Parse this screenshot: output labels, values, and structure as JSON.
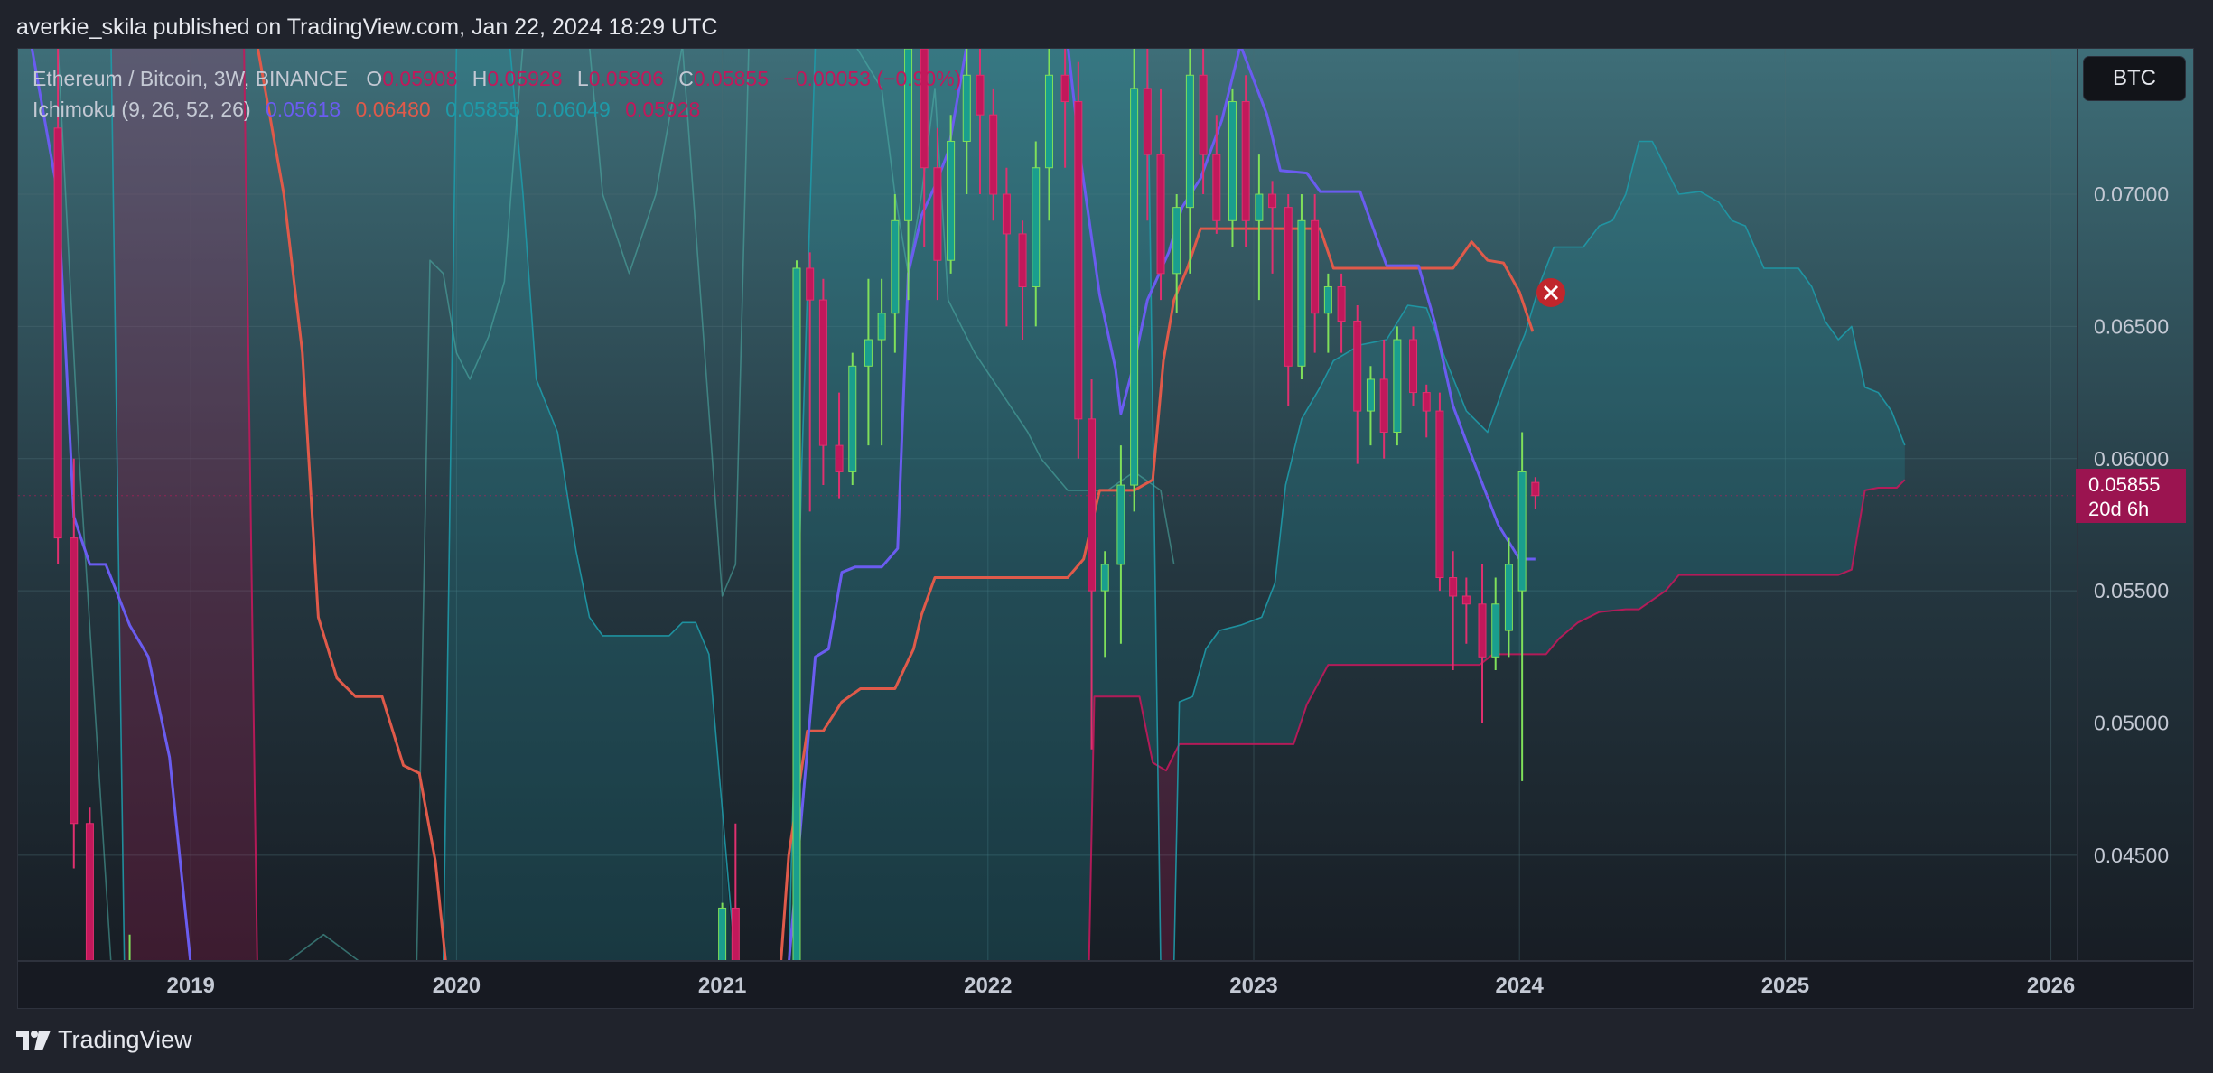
{
  "header": {
    "published_text": "averkie_skila published on TradingView.com, Jan 22, 2024 18:29 UTC"
  },
  "legend": {
    "symbol": "Ethereum / Bitcoin, 3W, BINANCE",
    "o_label": "O",
    "o_value": "0.05908",
    "h_label": "H",
    "h_value": "0.05928",
    "l_label": "L",
    "l_value": "0.05806",
    "c_label": "C",
    "c_value": "0.05855",
    "change": "−0.00053 (−0.90%)",
    "indicator": "Ichimoku (9, 26, 52, 26)",
    "ind_values": [
      "0.05618",
      "0.06480",
      "0.05855",
      "0.06049",
      "0.05928"
    ]
  },
  "currency_button": "BTC",
  "price_tag": {
    "price": "0.05855",
    "countdown": "20d 6h"
  },
  "footer": {
    "brand": "TradingView"
  },
  "colors": {
    "background": "#171a22",
    "up": "#1a9e8e",
    "down": "#c2185b",
    "tenkan": "#6a5cf0",
    "kijun": "#e05a4a",
    "lagging": "#4fb3a9",
    "span_a": "#1e9aa8",
    "span_b": "#c2185b",
    "grid": "#2c3a40"
  },
  "chart_data": {
    "type": "candlestick",
    "title": "Ethereum / Bitcoin, 3W, BINANCE",
    "ylim": [
      0.041,
      0.0755
    ],
    "y_ticks": [
      0.045,
      0.05,
      0.055,
      0.06,
      0.065,
      0.07
    ],
    "y_tick_labels": [
      "0.04500",
      "0.05000",
      "0.05500",
      "0.06000",
      "0.06500",
      "0.07000"
    ],
    "x_range": [
      2018.35,
      2026.1
    ],
    "x_ticks": [
      2019,
      2020,
      2021,
      2022,
      2023,
      2024,
      2025,
      2026
    ],
    "x_tick_labels": [
      "2019",
      "2020",
      "2021",
      "2022",
      "2023",
      "2024",
      "2025",
      "2026"
    ],
    "candles": [
      [
        2018.5,
        0.0725,
        0.076,
        0.056,
        0.057
      ],
      [
        2018.56,
        0.057,
        0.06,
        0.0445,
        0.0462
      ],
      [
        2018.62,
        0.0462,
        0.0468,
        0.04,
        0.0405
      ],
      [
        2018.77,
        0.036,
        0.042,
        0.035,
        0.041
      ],
      [
        2021.0,
        0.0405,
        0.0432,
        0.039,
        0.043
      ],
      [
        2021.05,
        0.043,
        0.0462,
        0.0395,
        0.04
      ],
      [
        2021.28,
        0.041,
        0.0675,
        0.04,
        0.0672
      ],
      [
        2021.33,
        0.0672,
        0.0678,
        0.058,
        0.066
      ],
      [
        2021.38,
        0.066,
        0.0668,
        0.059,
        0.0605
      ],
      [
        2021.44,
        0.0605,
        0.0625,
        0.0585,
        0.0595
      ],
      [
        2021.49,
        0.0595,
        0.064,
        0.059,
        0.0635
      ],
      [
        2021.55,
        0.0635,
        0.0668,
        0.0605,
        0.0645
      ],
      [
        2021.6,
        0.0645,
        0.0668,
        0.0605,
        0.0655
      ],
      [
        2021.65,
        0.0655,
        0.07,
        0.064,
        0.069
      ],
      [
        2021.7,
        0.069,
        0.076,
        0.066,
        0.0755
      ],
      [
        2021.76,
        0.0755,
        0.076,
        0.068,
        0.071
      ],
      [
        2021.81,
        0.071,
        0.0725,
        0.066,
        0.0675
      ],
      [
        2021.86,
        0.0675,
        0.073,
        0.067,
        0.072
      ],
      [
        2021.92,
        0.072,
        0.076,
        0.07,
        0.0745
      ],
      [
        2021.97,
        0.0745,
        0.076,
        0.07,
        0.073
      ],
      [
        2022.02,
        0.073,
        0.074,
        0.069,
        0.07
      ],
      [
        2022.07,
        0.07,
        0.071,
        0.065,
        0.0685
      ],
      [
        2022.13,
        0.0685,
        0.069,
        0.0645,
        0.0665
      ],
      [
        2022.18,
        0.0665,
        0.072,
        0.065,
        0.071
      ],
      [
        2022.23,
        0.071,
        0.0755,
        0.069,
        0.0745
      ],
      [
        2022.29,
        0.0745,
        0.076,
        0.071,
        0.0735
      ],
      [
        2022.34,
        0.0735,
        0.075,
        0.06,
        0.0615
      ],
      [
        2022.39,
        0.0615,
        0.063,
        0.049,
        0.055
      ],
      [
        2022.44,
        0.055,
        0.0565,
        0.0525,
        0.056
      ],
      [
        2022.5,
        0.056,
        0.0605,
        0.053,
        0.059
      ],
      [
        2022.55,
        0.059,
        0.076,
        0.058,
        0.074
      ],
      [
        2022.6,
        0.074,
        0.076,
        0.069,
        0.0715
      ],
      [
        2022.65,
        0.0715,
        0.074,
        0.066,
        0.067
      ],
      [
        2022.71,
        0.067,
        0.07,
        0.0655,
        0.0695
      ],
      [
        2022.76,
        0.0695,
        0.076,
        0.067,
        0.0745
      ],
      [
        2022.81,
        0.0745,
        0.0755,
        0.07,
        0.0715
      ],
      [
        2022.86,
        0.0715,
        0.073,
        0.0685,
        0.069
      ],
      [
        2022.92,
        0.069,
        0.074,
        0.068,
        0.0735
      ],
      [
        2022.97,
        0.0735,
        0.0745,
        0.068,
        0.069
      ],
      [
        2023.02,
        0.069,
        0.0715,
        0.066,
        0.07
      ],
      [
        2023.07,
        0.07,
        0.0705,
        0.067,
        0.0695
      ],
      [
        2023.13,
        0.0695,
        0.07,
        0.062,
        0.0635
      ],
      [
        2023.18,
        0.0635,
        0.07,
        0.063,
        0.069
      ],
      [
        2023.23,
        0.069,
        0.07,
        0.064,
        0.0655
      ],
      [
        2023.28,
        0.0655,
        0.067,
        0.064,
        0.0665
      ],
      [
        2023.33,
        0.0665,
        0.067,
        0.064,
        0.0652
      ],
      [
        2023.39,
        0.0652,
        0.0658,
        0.0598,
        0.0618
      ],
      [
        2023.44,
        0.0618,
        0.0635,
        0.0605,
        0.063
      ],
      [
        2023.49,
        0.063,
        0.0645,
        0.06,
        0.061
      ],
      [
        2023.54,
        0.061,
        0.065,
        0.0605,
        0.0645
      ],
      [
        2023.6,
        0.0645,
        0.065,
        0.062,
        0.0625
      ],
      [
        2023.65,
        0.0625,
        0.0628,
        0.0608,
        0.0618
      ],
      [
        2023.7,
        0.0618,
        0.0625,
        0.055,
        0.0555
      ],
      [
        2023.75,
        0.0555,
        0.0565,
        0.052,
        0.0548
      ],
      [
        2023.8,
        0.0548,
        0.0555,
        0.053,
        0.0545
      ],
      [
        2023.86,
        0.0545,
        0.056,
        0.05,
        0.0525
      ],
      [
        2023.91,
        0.0525,
        0.0555,
        0.052,
        0.0545
      ],
      [
        2023.96,
        0.0535,
        0.057,
        0.0525,
        0.056
      ],
      [
        2024.01,
        0.055,
        0.061,
        0.0478,
        0.0595
      ],
      [
        2024.06,
        0.0591,
        0.0593,
        0.0581,
        0.0586
      ]
    ],
    "tenkan": [
      [
        2018.4,
        0.076
      ],
      [
        2018.5,
        0.07
      ],
      [
        2018.56,
        0.0578
      ],
      [
        2018.62,
        0.056
      ],
      [
        2018.68,
        0.056
      ],
      [
        2018.77,
        0.0537
      ],
      [
        2018.84,
        0.0525
      ],
      [
        2018.92,
        0.0487
      ],
      [
        2019.0,
        0.04
      ],
      [
        2020.9,
        0.04
      ],
      [
        2021.25,
        0.04
      ],
      [
        2021.35,
        0.0525
      ],
      [
        2021.4,
        0.0528
      ],
      [
        2021.45,
        0.0557
      ],
      [
        2021.5,
        0.0559
      ],
      [
        2021.55,
        0.0559
      ],
      [
        2021.6,
        0.0559
      ],
      [
        2021.66,
        0.0566
      ],
      [
        2021.7,
        0.067
      ],
      [
        2021.75,
        0.0692
      ],
      [
        2021.8,
        0.0703
      ],
      [
        2021.85,
        0.0716
      ],
      [
        2021.92,
        0.076
      ],
      [
        2022.3,
        0.076
      ],
      [
        2022.35,
        0.0712
      ],
      [
        2022.42,
        0.0662
      ],
      [
        2022.48,
        0.0634
      ],
      [
        2022.5,
        0.0617
      ],
      [
        2022.55,
        0.0636
      ],
      [
        2022.6,
        0.066
      ],
      [
        2022.68,
        0.0678
      ],
      [
        2022.73,
        0.0695
      ],
      [
        2022.8,
        0.0706
      ],
      [
        2022.88,
        0.0728
      ],
      [
        2022.95,
        0.076
      ],
      [
        2023.05,
        0.073
      ],
      [
        2023.1,
        0.0709
      ],
      [
        2023.2,
        0.0708
      ],
      [
        2023.25,
        0.0701
      ],
      [
        2023.4,
        0.0701
      ],
      [
        2023.45,
        0.0687
      ],
      [
        2023.5,
        0.0673
      ],
      [
        2023.62,
        0.0673
      ],
      [
        2023.68,
        0.0652
      ],
      [
        2023.75,
        0.062
      ],
      [
        2023.82,
        0.0601
      ],
      [
        2023.92,
        0.0575
      ],
      [
        2024.0,
        0.0562
      ],
      [
        2024.06,
        0.0562
      ]
    ],
    "kijun": [
      [
        2018.4,
        0.076
      ],
      [
        2019.25,
        0.076
      ],
      [
        2019.35,
        0.07
      ],
      [
        2019.42,
        0.064
      ],
      [
        2019.48,
        0.054
      ],
      [
        2019.55,
        0.0517
      ],
      [
        2019.62,
        0.051
      ],
      [
        2019.72,
        0.051
      ],
      [
        2019.8,
        0.0484
      ],
      [
        2019.86,
        0.0481
      ],
      [
        2019.92,
        0.0448
      ],
      [
        2019.96,
        0.04
      ],
      [
        2021.22,
        0.04
      ],
      [
        2021.25,
        0.045
      ],
      [
        2021.32,
        0.0497
      ],
      [
        2021.38,
        0.0497
      ],
      [
        2021.45,
        0.0508
      ],
      [
        2021.52,
        0.0513
      ],
      [
        2021.65,
        0.0513
      ],
      [
        2021.72,
        0.0528
      ],
      [
        2021.75,
        0.0541
      ],
      [
        2021.8,
        0.0555
      ],
      [
        2022.3,
        0.0555
      ],
      [
        2022.36,
        0.0562
      ],
      [
        2022.42,
        0.0588
      ],
      [
        2022.48,
        0.0588
      ],
      [
        2022.55,
        0.0588
      ],
      [
        2022.62,
        0.0592
      ],
      [
        2022.66,
        0.0637
      ],
      [
        2022.7,
        0.066
      ],
      [
        2022.75,
        0.0672
      ],
      [
        2022.8,
        0.0687
      ],
      [
        2023.25,
        0.0687
      ],
      [
        2023.3,
        0.0672
      ],
      [
        2023.75,
        0.0672
      ],
      [
        2023.82,
        0.0682
      ],
      [
        2023.88,
        0.0675
      ],
      [
        2023.94,
        0.0674
      ],
      [
        2024.0,
        0.0663
      ],
      [
        2024.05,
        0.0648
      ]
    ],
    "lagging": [
      [
        2018.5,
        0.076
      ],
      [
        2018.58,
        0.06
      ],
      [
        2018.7,
        0.04
      ],
      [
        2019.0,
        0.04
      ],
      [
        2019.2,
        0.04
      ],
      [
        2019.35,
        0.04
      ],
      [
        2019.5,
        0.042
      ],
      [
        2019.65,
        0.04
      ],
      [
        2019.85,
        0.04
      ],
      [
        2019.9,
        0.0675
      ],
      [
        2019.95,
        0.067
      ],
      [
        2020.0,
        0.064
      ],
      [
        2020.05,
        0.063
      ],
      [
        2020.12,
        0.0646
      ],
      [
        2020.18,
        0.0667
      ],
      [
        2020.22,
        0.072
      ],
      [
        2020.25,
        0.076
      ],
      [
        2020.5,
        0.076
      ],
      [
        2020.55,
        0.07
      ],
      [
        2020.65,
        0.067
      ],
      [
        2020.75,
        0.07
      ],
      [
        2020.85,
        0.076
      ],
      [
        2021.0,
        0.0548
      ],
      [
        2021.05,
        0.056
      ],
      [
        2021.1,
        0.076
      ],
      [
        2021.5,
        0.076
      ],
      [
        2021.6,
        0.074
      ],
      [
        2021.65,
        0.07
      ],
      [
        2021.7,
        0.067
      ],
      [
        2021.75,
        0.07
      ],
      [
        2021.8,
        0.074
      ],
      [
        2021.85,
        0.066
      ],
      [
        2021.95,
        0.064
      ],
      [
        2022.05,
        0.0625
      ],
      [
        2022.15,
        0.061
      ],
      [
        2022.2,
        0.06
      ],
      [
        2022.3,
        0.0588
      ],
      [
        2022.45,
        0.0588
      ],
      [
        2022.55,
        0.0595
      ],
      [
        2022.65,
        0.0588
      ],
      [
        2022.7,
        0.056
      ]
    ],
    "span_a": [
      [
        2018.4,
        0.076
      ],
      [
        2018.7,
        0.076
      ],
      [
        2018.75,
        0.04
      ],
      [
        2019.2,
        0.04
      ],
      [
        2019.95,
        0.04
      ],
      [
        2020.0,
        0.076
      ],
      [
        2020.2,
        0.076
      ],
      [
        2020.25,
        0.07
      ],
      [
        2020.3,
        0.063
      ],
      [
        2020.38,
        0.061
      ],
      [
        2020.45,
        0.0565
      ],
      [
        2020.5,
        0.054
      ],
      [
        2020.55,
        0.0533
      ],
      [
        2020.8,
        0.0533
      ],
      [
        2020.85,
        0.0538
      ],
      [
        2020.9,
        0.0538
      ],
      [
        2020.95,
        0.0526
      ],
      [
        2021.05,
        0.04
      ],
      [
        2021.25,
        0.04
      ],
      [
        2021.3,
        0.06
      ],
      [
        2021.35,
        0.076
      ],
      [
        2022.6,
        0.076
      ],
      [
        2022.65,
        0.04
      ],
      [
        2022.7,
        0.04
      ],
      [
        2022.72,
        0.0508
      ],
      [
        2022.77,
        0.051
      ],
      [
        2022.82,
        0.0528
      ],
      [
        2022.87,
        0.0535
      ],
      [
        2022.95,
        0.0537
      ],
      [
        2023.03,
        0.054
      ],
      [
        2023.08,
        0.0553
      ],
      [
        2023.12,
        0.059
      ],
      [
        2023.18,
        0.0615
      ],
      [
        2023.25,
        0.0627
      ],
      [
        2023.3,
        0.0637
      ],
      [
        2023.4,
        0.0643
      ],
      [
        2023.5,
        0.0645
      ],
      [
        2023.58,
        0.0658
      ],
      [
        2023.65,
        0.0657
      ],
      [
        2023.72,
        0.0638
      ],
      [
        2023.8,
        0.0618
      ],
      [
        2023.88,
        0.061
      ],
      [
        2023.95,
        0.063
      ],
      [
        2024.02,
        0.0647
      ],
      [
        2024.08,
        0.0667
      ],
      [
        2024.13,
        0.068
      ],
      [
        2024.24,
        0.068
      ],
      [
        2024.3,
        0.0688
      ],
      [
        2024.35,
        0.069
      ],
      [
        2024.4,
        0.07
      ],
      [
        2024.45,
        0.072
      ],
      [
        2024.5,
        0.072
      ],
      [
        2024.6,
        0.07
      ],
      [
        2024.68,
        0.0701
      ],
      [
        2024.75,
        0.0697
      ],
      [
        2024.8,
        0.069
      ],
      [
        2024.85,
        0.0688
      ],
      [
        2024.92,
        0.0672
      ],
      [
        2025.05,
        0.0672
      ],
      [
        2025.1,
        0.0665
      ],
      [
        2025.15,
        0.0652
      ],
      [
        2025.2,
        0.0645
      ],
      [
        2025.25,
        0.065
      ],
      [
        2025.3,
        0.0627
      ],
      [
        2025.35,
        0.0625
      ],
      [
        2025.4,
        0.0618
      ],
      [
        2025.45,
        0.0605
      ]
    ],
    "span_b": [
      [
        2018.4,
        0.076
      ],
      [
        2019.2,
        0.076
      ],
      [
        2019.25,
        0.04
      ],
      [
        2020.9,
        0.04
      ],
      [
        2021.2,
        0.04
      ],
      [
        2021.25,
        0.04
      ],
      [
        2022.38,
        0.04
      ],
      [
        2022.4,
        0.051
      ],
      [
        2022.57,
        0.051
      ],
      [
        2022.62,
        0.0485
      ],
      [
        2022.67,
        0.0482
      ],
      [
        2022.72,
        0.0492
      ],
      [
        2022.8,
        0.0492
      ],
      [
        2023.15,
        0.0492
      ],
      [
        2023.2,
        0.0507
      ],
      [
        2023.28,
        0.0522
      ],
      [
        2023.65,
        0.0522
      ],
      [
        2023.85,
        0.0522
      ],
      [
        2023.9,
        0.0526
      ],
      [
        2024.1,
        0.0526
      ],
      [
        2024.15,
        0.0532
      ],
      [
        2024.22,
        0.0538
      ],
      [
        2024.3,
        0.0542
      ],
      [
        2024.4,
        0.0543
      ],
      [
        2024.45,
        0.0543
      ],
      [
        2024.55,
        0.055
      ],
      [
        2024.6,
        0.0556
      ],
      [
        2025.2,
        0.0556
      ],
      [
        2025.25,
        0.0558
      ],
      [
        2025.3,
        0.0588
      ],
      [
        2025.35,
        0.0589
      ],
      [
        2025.42,
        0.0589
      ],
      [
        2025.45,
        0.0592
      ]
    ]
  }
}
